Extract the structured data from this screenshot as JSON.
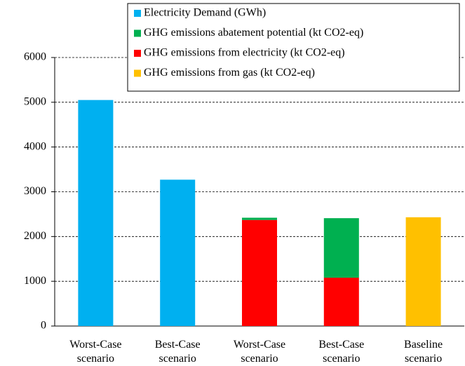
{
  "chart_data": {
    "type": "stacked-bar",
    "categories": [
      "Worst-Case scenario",
      "Best-Case scenario",
      "Worst-Case scenario",
      "Best-Case scenario",
      "Baseline scenario"
    ],
    "series": [
      {
        "name": "Electricity Demand (GWh)",
        "color": "#00b0f0",
        "values": [
          5050,
          3270,
          null,
          null,
          null
        ]
      },
      {
        "name": "GHG emissions abatement potential (kt CO2-eq)",
        "color": "#00b050",
        "values": [
          null,
          null,
          50,
          1330,
          null
        ]
      },
      {
        "name": "GHG emissions from electricity (kt CO2-eq)",
        "color": "#ff0000",
        "values": [
          null,
          null,
          2370,
          1080,
          null
        ]
      },
      {
        "name": "GHG emissions from gas (kt CO2-eq)",
        "color": "#ffc000",
        "values": [
          null,
          null,
          null,
          null,
          2430
        ]
      }
    ],
    "ylim": [
      0,
      6000
    ],
    "yticks": [
      0,
      1000,
      2000,
      3000,
      4000,
      5000,
      6000
    ],
    "grid": true,
    "legend": "top-right"
  }
}
